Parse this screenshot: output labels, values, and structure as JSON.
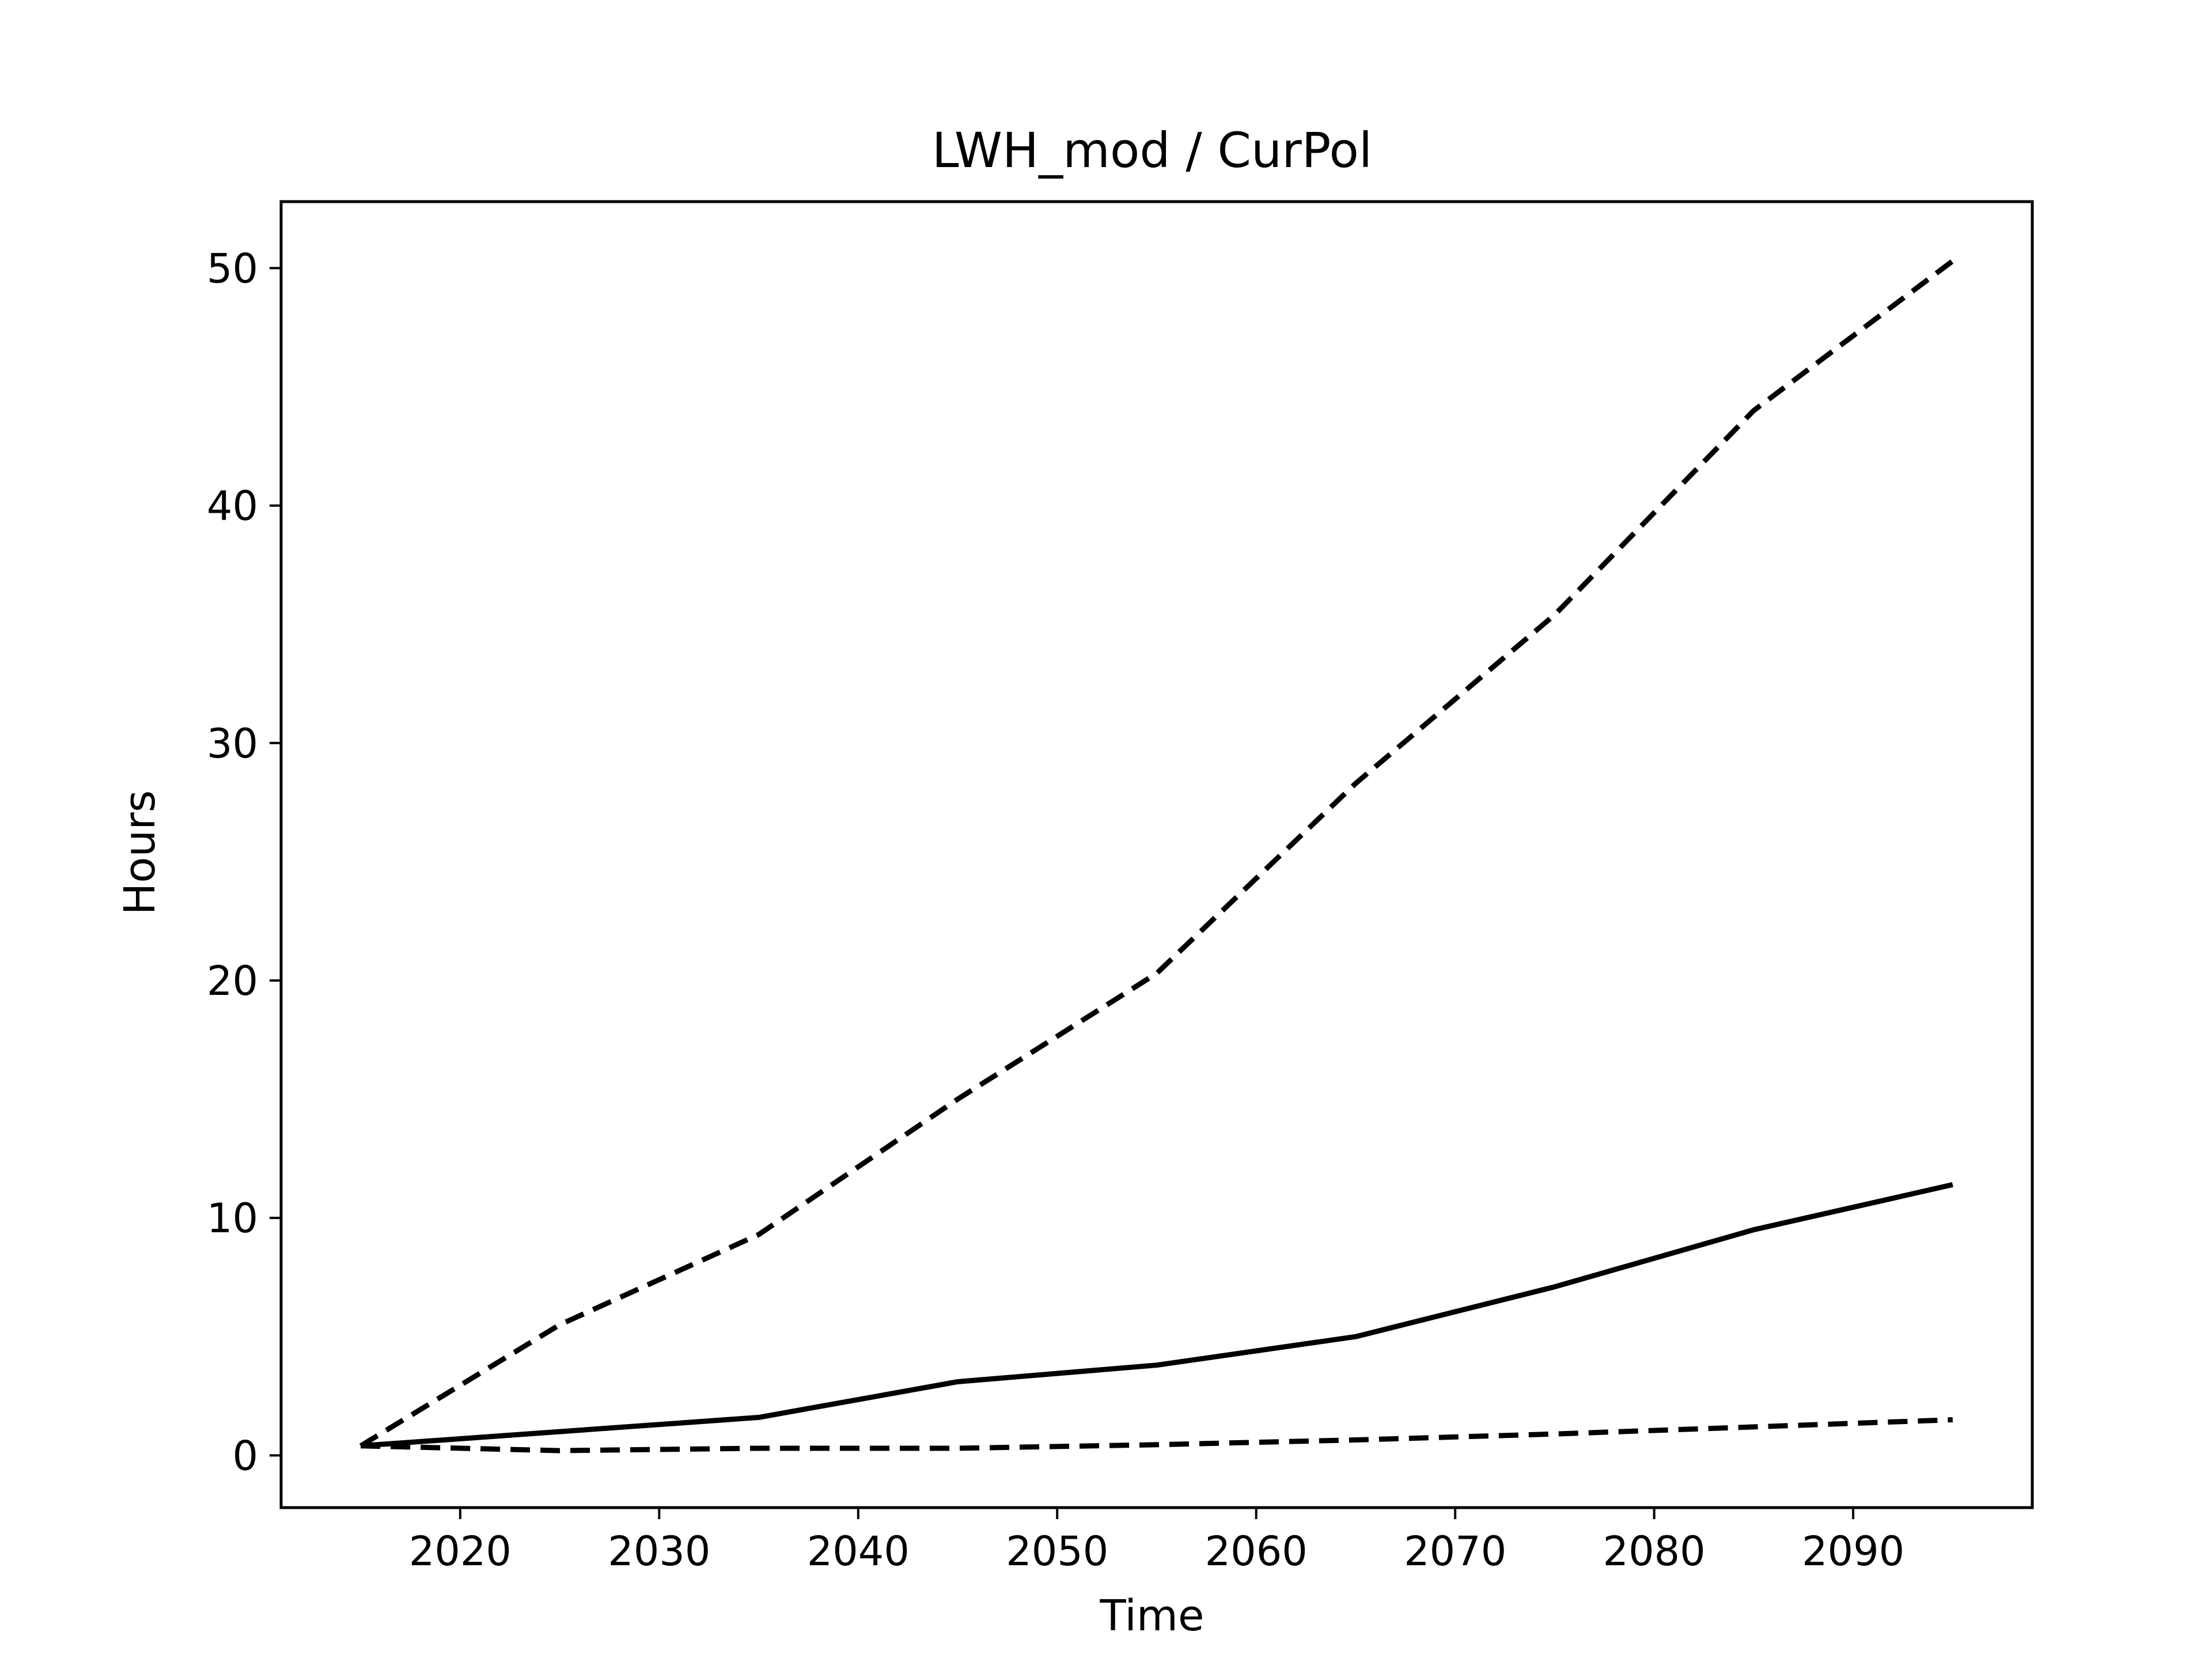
{
  "chart_data": {
    "type": "line",
    "title": "LWH_mod / CurPol",
    "xlabel": "Time",
    "ylabel": "Hours",
    "xlim": [
      2011,
      2099
    ],
    "ylim": [
      -2.2,
      52.8
    ],
    "xticks": [
      2020,
      2030,
      2040,
      2050,
      2060,
      2070,
      2080,
      2090
    ],
    "yticks": [
      0,
      10,
      20,
      30,
      40,
      50
    ],
    "grid": false,
    "legend": "none",
    "line_color": "#000000",
    "x": [
      2015,
      2025,
      2035,
      2045,
      2055,
      2065,
      2075,
      2085,
      2095
    ],
    "series": [
      {
        "style": "dashed",
        "values": [
          0.4,
          5.5,
          9.3,
          15.0,
          20.3,
          28.3,
          35.4,
          44.0,
          50.3
        ]
      },
      {
        "style": "solid",
        "values": [
          0.4,
          1.0,
          1.6,
          3.1,
          3.8,
          5.0,
          7.1,
          9.5,
          11.4
        ]
      },
      {
        "style": "dashed",
        "values": [
          0.4,
          0.2,
          0.3,
          0.3,
          0.45,
          0.65,
          0.9,
          1.2,
          1.5
        ]
      }
    ]
  }
}
